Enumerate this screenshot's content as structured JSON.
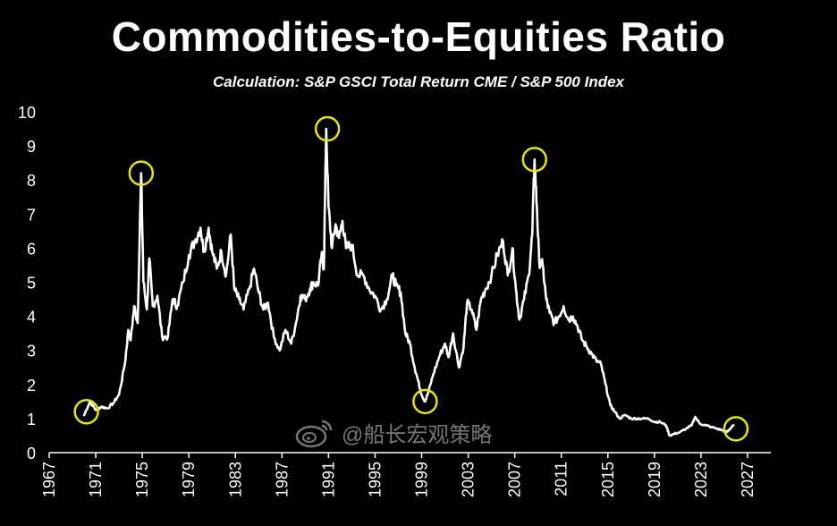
{
  "chart_data": {
    "type": "line",
    "title": "Commodities-to-Equities Ratio",
    "subtitle": "Calculation: S&P GSCI Total Return CME / S&P 500 Index",
    "xlabel": "",
    "ylabel": "",
    "xlim": [
      1967,
      2029
    ],
    "ylim": [
      0,
      10
    ],
    "x_ticks": [
      1967,
      1971,
      1975,
      1979,
      1983,
      1987,
      1991,
      1995,
      1999,
      2003,
      2007,
      2011,
      2015,
      2019,
      2023,
      2027
    ],
    "y_ticks": [
      0,
      1,
      2,
      3,
      4,
      5,
      6,
      7,
      8,
      9,
      10
    ],
    "grid": false,
    "series": [
      {
        "name": "Commodities-to-Equities Ratio",
        "color": "#ffffff",
        "points": [
          [
            1970.0,
            1.1
          ],
          [
            1970.5,
            1.5
          ],
          [
            1971.0,
            1.25
          ],
          [
            1971.5,
            1.35
          ],
          [
            1972.0,
            1.3
          ],
          [
            1972.5,
            1.45
          ],
          [
            1973.0,
            1.7
          ],
          [
            1973.5,
            2.6
          ],
          [
            1973.8,
            3.6
          ],
          [
            1974.0,
            3.3
          ],
          [
            1974.3,
            4.3
          ],
          [
            1974.6,
            3.8
          ],
          [
            1974.9,
            8.2
          ],
          [
            1975.1,
            5.0
          ],
          [
            1975.4,
            4.2
          ],
          [
            1975.6,
            5.7
          ],
          [
            1975.9,
            4.3
          ],
          [
            1976.3,
            4.6
          ],
          [
            1976.7,
            3.4
          ],
          [
            1977.2,
            3.4
          ],
          [
            1977.6,
            4.5
          ],
          [
            1978.0,
            4.3
          ],
          [
            1978.5,
            5.0
          ],
          [
            1979.0,
            5.8
          ],
          [
            1979.5,
            6.2
          ],
          [
            1980.0,
            6.6
          ],
          [
            1980.3,
            5.9
          ],
          [
            1980.7,
            6.6
          ],
          [
            1981.0,
            5.9
          ],
          [
            1981.4,
            5.4
          ],
          [
            1981.8,
            5.9
          ],
          [
            1982.2,
            5.2
          ],
          [
            1982.6,
            6.4
          ],
          [
            1982.9,
            4.8
          ],
          [
            1983.3,
            4.5
          ],
          [
            1983.7,
            4.2
          ],
          [
            1984.2,
            4.8
          ],
          [
            1984.6,
            5.4
          ],
          [
            1985.0,
            4.7
          ],
          [
            1985.4,
            4.2
          ],
          [
            1985.8,
            4.4
          ],
          [
            1986.3,
            3.4
          ],
          [
            1986.8,
            3.0
          ],
          [
            1987.3,
            3.6
          ],
          [
            1987.8,
            3.2
          ],
          [
            1988.2,
            3.8
          ],
          [
            1988.6,
            4.6
          ],
          [
            1989.0,
            4.5
          ],
          [
            1989.4,
            4.8
          ],
          [
            1989.7,
            5.0
          ],
          [
            1990.1,
            4.9
          ],
          [
            1990.4,
            5.8
          ],
          [
            1990.6,
            5.4
          ],
          [
            1990.8,
            9.5
          ],
          [
            1991.0,
            7.2
          ],
          [
            1991.3,
            6.0
          ],
          [
            1991.6,
            6.7
          ],
          [
            1991.9,
            6.3
          ],
          [
            1992.2,
            6.8
          ],
          [
            1992.5,
            6.0
          ],
          [
            1993.0,
            6.1
          ],
          [
            1993.5,
            5.2
          ],
          [
            1994.0,
            5.2
          ],
          [
            1994.5,
            4.8
          ],
          [
            1995.0,
            4.6
          ],
          [
            1995.5,
            4.2
          ],
          [
            1996.0,
            4.5
          ],
          [
            1996.5,
            5.2
          ],
          [
            1996.8,
            4.9
          ],
          [
            1997.2,
            4.7
          ],
          [
            1997.6,
            3.5
          ],
          [
            1998.0,
            3.2
          ],
          [
            1998.4,
            2.5
          ],
          [
            1998.7,
            2.1
          ],
          [
            1999.0,
            1.7
          ],
          [
            1999.3,
            1.5
          ],
          [
            1999.6,
            1.8
          ],
          [
            2000.0,
            2.3
          ],
          [
            2000.5,
            2.8
          ],
          [
            2001.0,
            3.2
          ],
          [
            2001.3,
            2.8
          ],
          [
            2001.7,
            3.5
          ],
          [
            2002.2,
            2.5
          ],
          [
            2002.6,
            3.1
          ],
          [
            2002.9,
            4.4
          ],
          [
            2003.3,
            4.2
          ],
          [
            2003.7,
            3.6
          ],
          [
            2004.1,
            4.5
          ],
          [
            2004.5,
            4.8
          ],
          [
            2005.0,
            5.2
          ],
          [
            2005.5,
            5.8
          ],
          [
            2006.0,
            6.2
          ],
          [
            2006.4,
            5.2
          ],
          [
            2006.8,
            6.0
          ],
          [
            2007.1,
            4.8
          ],
          [
            2007.4,
            3.9
          ],
          [
            2007.8,
            4.5
          ],
          [
            2008.2,
            5.2
          ],
          [
            2008.5,
            6.4
          ],
          [
            2008.7,
            8.6
          ],
          [
            2008.9,
            7.2
          ],
          [
            2009.1,
            5.6
          ],
          [
            2009.4,
            5.5
          ],
          [
            2009.7,
            4.5
          ],
          [
            2010.0,
            4.1
          ],
          [
            2010.4,
            3.8
          ],
          [
            2010.8,
            4.0
          ],
          [
            2011.2,
            4.3
          ],
          [
            2011.6,
            3.9
          ],
          [
            2012.0,
            4.0
          ],
          [
            2012.4,
            3.7
          ],
          [
            2012.8,
            3.3
          ],
          [
            2013.2,
            3.1
          ],
          [
            2013.6,
            2.9
          ],
          [
            2014.0,
            2.7
          ],
          [
            2014.4,
            2.6
          ],
          [
            2014.8,
            2.0
          ],
          [
            2015.2,
            1.4
          ],
          [
            2015.6,
            1.2
          ],
          [
            2016.0,
            1.0
          ],
          [
            2016.5,
            1.1
          ],
          [
            2017.0,
            1.0
          ],
          [
            2017.5,
            1.0
          ],
          [
            2018.0,
            1.0
          ],
          [
            2018.5,
            1.0
          ],
          [
            2019.0,
            0.9
          ],
          [
            2019.5,
            0.9
          ],
          [
            2020.0,
            0.8
          ],
          [
            2020.3,
            0.5
          ],
          [
            2020.7,
            0.55
          ],
          [
            2021.2,
            0.6
          ],
          [
            2021.7,
            0.7
          ],
          [
            2022.2,
            0.8
          ],
          [
            2022.5,
            1.05
          ],
          [
            2022.9,
            0.85
          ],
          [
            2023.4,
            0.8
          ],
          [
            2023.9,
            0.75
          ],
          [
            2024.4,
            0.7
          ],
          [
            2024.9,
            0.65
          ],
          [
            2025.2,
            0.6
          ],
          [
            2025.5,
            0.7
          ],
          [
            2025.8,
            0.8
          ]
        ]
      }
    ],
    "highlighted_points": [
      {
        "x": 1970.2,
        "y": 1.2,
        "color": "#e6e600"
      },
      {
        "x": 1974.9,
        "y": 8.2,
        "color": "#e6e600"
      },
      {
        "x": 1990.9,
        "y": 9.5,
        "color": "#e6e600"
      },
      {
        "x": 1999.3,
        "y": 1.5,
        "color": "#e6e600"
      },
      {
        "x": 2008.7,
        "y": 8.6,
        "color": "#e6e600"
      },
      {
        "x": 2026.0,
        "y": 0.7,
        "color": "#e6e600"
      }
    ],
    "colors": {
      "background": "#000000",
      "line": "#ffffff",
      "axis": "#ffffff",
      "circle": "#e6e600"
    }
  },
  "watermark": {
    "text": "@船长宏观策略",
    "icon": "weibo-logo-icon"
  }
}
